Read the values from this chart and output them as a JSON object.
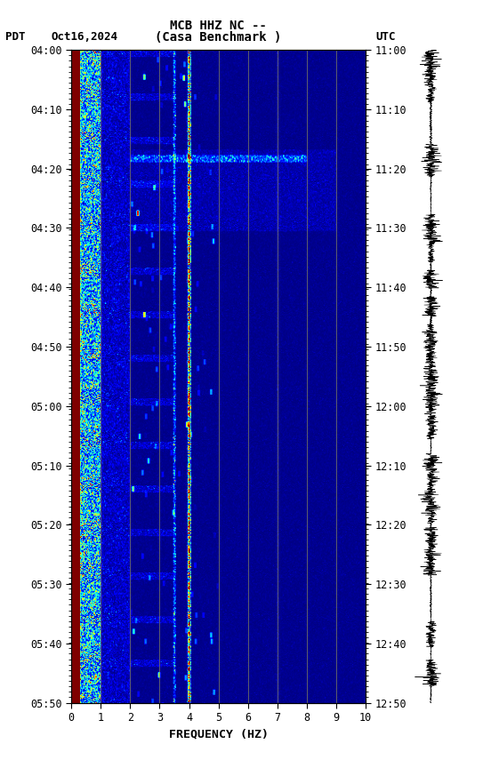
{
  "title_line1": "MCB HHZ NC --",
  "title_line2": "(Casa Benchmark )",
  "label_left": "PDT",
  "label_date": "Oct16,2024",
  "label_right": "UTC",
  "freq_min": 0,
  "freq_max": 10,
  "freq_ticks": [
    0,
    1,
    2,
    3,
    4,
    5,
    6,
    7,
    8,
    9,
    10
  ],
  "freq_label": "FREQUENCY (HZ)",
  "time_left_labels": [
    "04:00",
    "04:10",
    "04:20",
    "04:30",
    "04:40",
    "04:50",
    "05:00",
    "05:10",
    "05:20",
    "05:30",
    "05:40",
    "05:50"
  ],
  "time_right_labels": [
    "11:00",
    "11:10",
    "11:20",
    "11:30",
    "11:40",
    "11:50",
    "12:00",
    "12:10",
    "12:20",
    "12:30",
    "12:40",
    "12:50"
  ],
  "background_color": "#ffffff",
  "colormap": "jet",
  "n_time": 720,
  "n_freq": 500,
  "seed": 42,
  "vline_color": "#808060",
  "vline_freqs": [
    1,
    2,
    3,
    4,
    5,
    6,
    7,
    8,
    9
  ]
}
